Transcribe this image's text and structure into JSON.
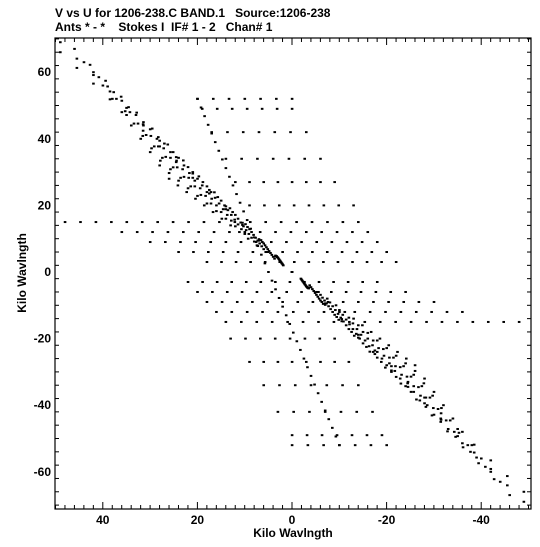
{
  "header": {
    "title_line1": "V vs U for 1206-238.C BAND.1   Source:1206-238",
    "title_line2": "Ants * - *    Stokes I  IF# 1 - 2   Chan# 1"
  },
  "chart_data": {
    "type": "scatter",
    "title": "V vs U for 1206-238.C BAND.1   Source:1206-238",
    "subtitle": "Ants * - *    Stokes I  IF# 1 - 2   Chan# 1",
    "xlabel": "Kilo Wavlngth",
    "ylabel": "Kilo Wavlngth",
    "xlim": [
      50,
      -50
    ],
    "ylim": [
      -71,
      71
    ],
    "x_reversed": true,
    "xticks": [
      40,
      20,
      0,
      -20,
      -40
    ],
    "yticks": [
      60,
      40,
      20,
      0,
      -20,
      -40,
      -60
    ],
    "grid": false,
    "marker_color": "#000000",
    "pattern": "uv-tracks",
    "description_of_points": "Symmetric uv-coverage: sampled points along radial spokes (alternating through origin) and earth-rotation arcs; each point (u,v) has a conjugate (-u,-v).",
    "spokes": [
      {
        "u": 49,
        "v": 69
      },
      {
        "u": 46,
        "v": 67
      },
      {
        "u": 49,
        "v": 66
      },
      {
        "u": 44,
        "v": 63
      },
      {
        "u": 42,
        "v": 60
      },
      {
        "u": 40,
        "v": 56
      },
      {
        "u": 38,
        "v": 52
      },
      {
        "u": 36,
        "v": 48
      },
      {
        "u": 34,
        "v": 44
      },
      {
        "u": 32,
        "v": 40
      },
      {
        "u": 30,
        "v": 36
      },
      {
        "u": 28,
        "v": 32
      },
      {
        "u": 26,
        "v": 28
      }
    ],
    "arcs": [
      {
        "v": 52,
        "u_from": 20,
        "u_to": 0
      },
      {
        "v": 49,
        "u_from": 19,
        "u_to": 0
      },
      {
        "v": 42,
        "u_from": 17,
        "u_to": -3
      },
      {
        "v": 34,
        "u_from": 14,
        "u_to": -6
      },
      {
        "v": 27,
        "u_from": 12,
        "u_to": -9
      },
      {
        "v": 20,
        "u_from": 9,
        "u_to": -13
      },
      {
        "v": 15,
        "u_from": 48,
        "u_to": -14
      },
      {
        "v": 12,
        "u_from": 36,
        "u_to": -16
      },
      {
        "v": 9,
        "u_from": 30,
        "u_to": -18
      },
      {
        "v": 6,
        "u_from": 24,
        "u_to": -20
      },
      {
        "v": 3,
        "u_from": 18,
        "u_to": -22
      }
    ]
  }
}
